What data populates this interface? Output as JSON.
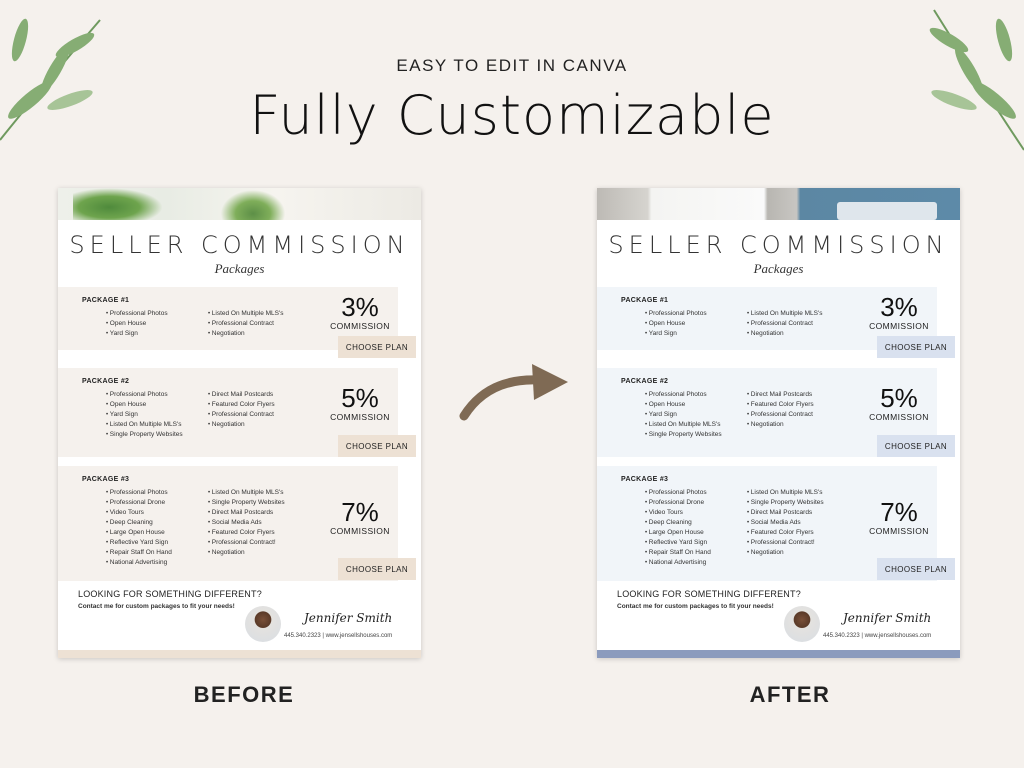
{
  "header": {
    "eyebrow": "EASY TO EDIT IN CANVA",
    "title": "Fully Customizable"
  },
  "flyer": {
    "title": "SELLER COMMISSION",
    "subtitle": "Packages",
    "packages": [
      {
        "name": "PACKAGE #1",
        "col1": [
          "Professional Photos",
          "Open House",
          "Yard Sign"
        ],
        "col2": [
          "Listed On Multiple MLS's",
          "Professional Contract",
          "Negotiation"
        ],
        "rate": "3%",
        "rate_label": "COMMISSION",
        "button": "CHOOSE PLAN"
      },
      {
        "name": "PACKAGE #2",
        "col1": [
          "Professional Photos",
          "Open House",
          "Yard Sign",
          "Listed On Multiple MLS's",
          "Single Property Websites"
        ],
        "col2": [
          "Direct Mail Postcards",
          "Featured Color Flyers",
          "Professional Contract",
          "Negotiation"
        ],
        "rate": "5%",
        "rate_label": "COMMISSION",
        "button": "CHOOSE PLAN"
      },
      {
        "name": "PACKAGE #3",
        "col1": [
          "Professional Photos",
          "Professional Drone",
          "Video Tours",
          "Deep Cleaning",
          "Large Open House",
          "Reflective Yard Sign",
          "Repair Staff On Hand",
          "National Advertising"
        ],
        "col2": [
          "Listed On Multiple MLS's",
          "Single Property Websites",
          "Direct Mail Postcards",
          "Social Media Ads",
          "Featured Color Flyers",
          "Professional Contract!",
          "Negotiation"
        ],
        "rate": "7%",
        "rate_label": "COMMISSION",
        "button": "CHOOSE PLAN"
      }
    ],
    "footer": {
      "heading": "LOOKING FOR SOMETHING DIFFERENT?",
      "text": "Contact me for custom packages to fit your needs!",
      "signature": "Jennifer Smith",
      "contact": "445.340.2323 | www.jensellshouses.com"
    }
  },
  "labels": {
    "before": "BEFORE",
    "after": "AFTER"
  },
  "colors": {
    "background": "#f5f1ed",
    "before_accent": "#ede1d4",
    "after_accent": "#d9e1ef",
    "after_bar": "#8b9bbd",
    "arrow": "#7f6a54",
    "leaf": "#7aa36a"
  }
}
